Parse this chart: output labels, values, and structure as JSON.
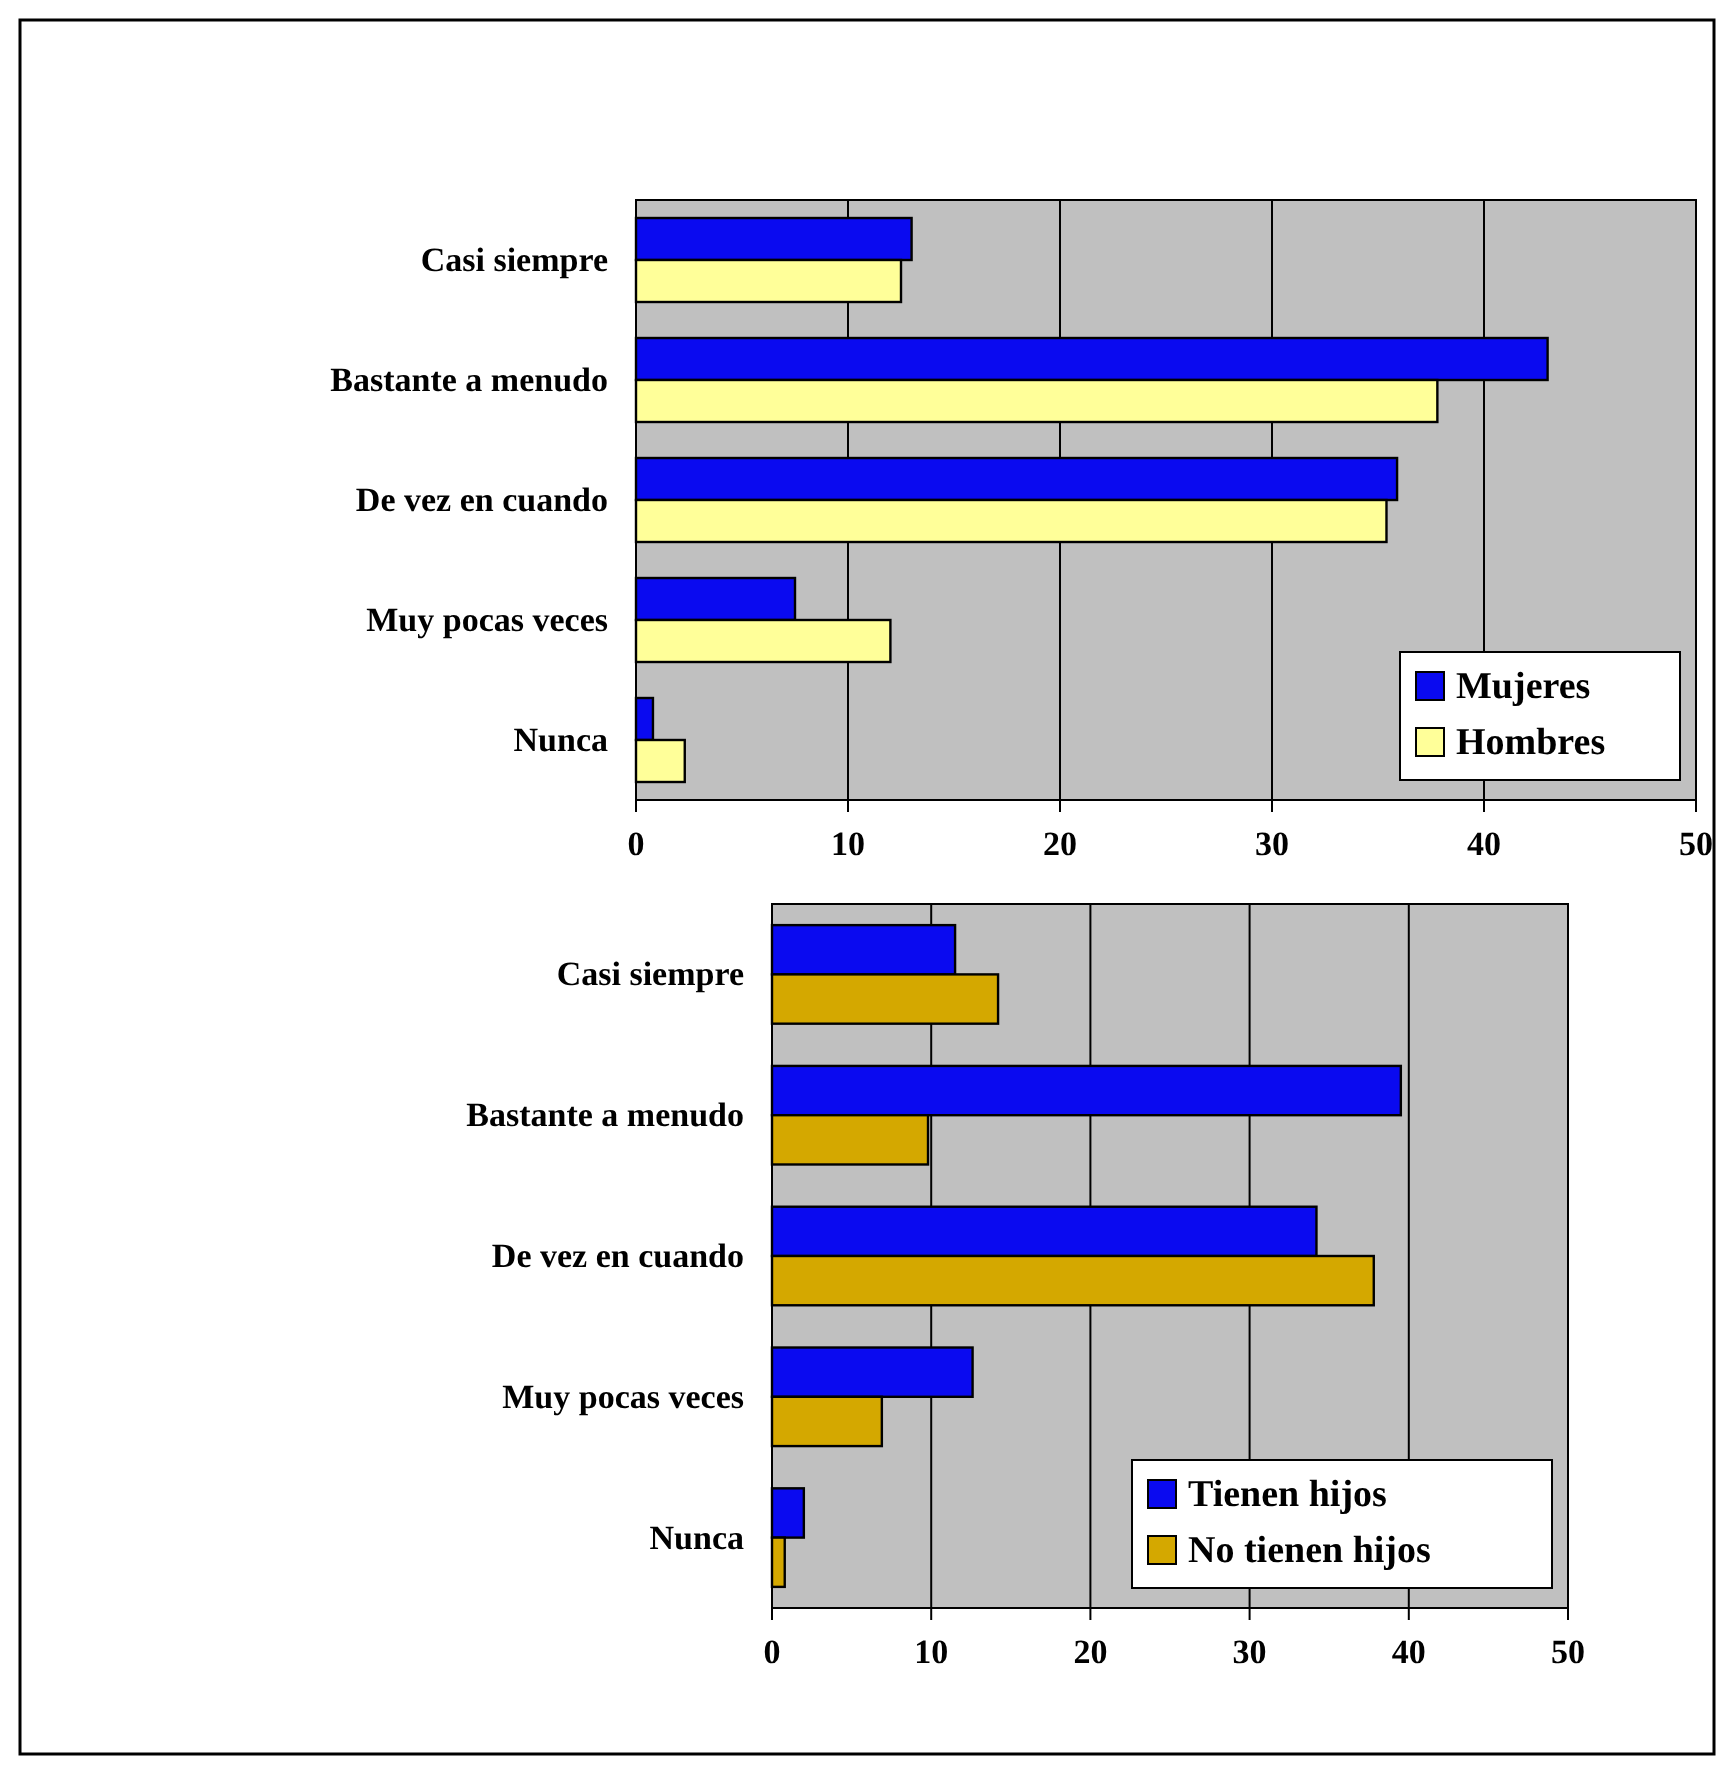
{
  "chart_data": [
    {
      "type": "bar",
      "orientation": "horizontal",
      "categories": [
        "Casi siempre",
        "Bastante a menudo",
        "De vez en cuando",
        "Muy pocas veces",
        "Nunca"
      ],
      "series": [
        {
          "name": "Mujeres",
          "color": "#0a0af0",
          "values": [
            13.0,
            43.0,
            35.9,
            7.5,
            0.8
          ]
        },
        {
          "name": "Hombres",
          "color": "#ffff99",
          "values": [
            12.5,
            37.8,
            35.4,
            12.0,
            2.3
          ]
        }
      ],
      "xlim": [
        0,
        50
      ],
      "xticks": [
        0,
        10,
        20,
        30,
        40,
        50
      ],
      "grid": "x",
      "legend": "bottom right"
    },
    {
      "type": "bar",
      "orientation": "horizontal",
      "categories": [
        "Casi siempre",
        "Bastante a menudo",
        "De vez en cuando",
        "Muy pocas veces",
        "Nunca"
      ],
      "series": [
        {
          "name": "Tienen hijos",
          "color": "#0a0af0",
          "values": [
            11.5,
            39.5,
            34.2,
            12.6,
            2.0
          ]
        },
        {
          "name": "No tienen hijos",
          "color": "#d4a800",
          "values": [
            14.2,
            9.8,
            37.8,
            6.9,
            0.8
          ]
        }
      ],
      "xlim": [
        0,
        50
      ],
      "xticks": [
        0,
        10,
        20,
        30,
        40,
        50
      ],
      "grid": "x",
      "legend": "bottom right"
    }
  ]
}
